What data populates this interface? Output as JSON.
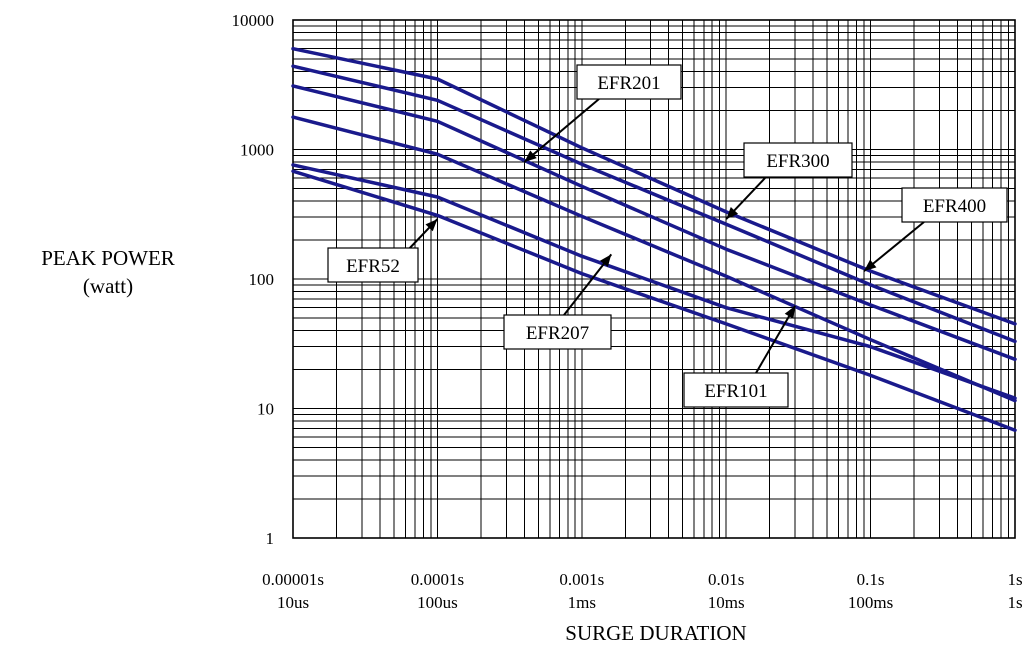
{
  "chart_data": {
    "type": "line",
    "title": "",
    "xlabel": "SURGE DURATION",
    "ylabel_line1": "PEAK POWER",
    "ylabel_line2": "(watt)",
    "x_scale": "log",
    "y_scale": "log",
    "xlim": [
      1e-05,
      1
    ],
    "ylim": [
      1,
      10000
    ],
    "grid": true,
    "x_ticks": [
      {
        "value": 1e-05,
        "label1": "0.00001s",
        "label2": "10us"
      },
      {
        "value": 0.0001,
        "label1": "0.0001s",
        "label2": "100us"
      },
      {
        "value": 0.001,
        "label1": "0.001s",
        "label2": "1ms"
      },
      {
        "value": 0.01,
        "label1": "0.01s",
        "label2": "10ms"
      },
      {
        "value": 0.1,
        "label1": "0.1s",
        "label2": "100ms"
      },
      {
        "value": 1,
        "label1": "1s",
        "label2": "1s"
      }
    ],
    "y_ticks": [
      {
        "value": 1,
        "label": "1"
      },
      {
        "value": 10,
        "label": "10"
      },
      {
        "value": 100,
        "label": "100"
      },
      {
        "value": 1000,
        "label": "1000"
      },
      {
        "value": 10000,
        "label": "10000"
      }
    ],
    "series_color": "#1a1a8c",
    "series": [
      {
        "points": [
          [
            1e-05,
            6000
          ],
          [
            0.0001,
            3500
          ],
          [
            0.001,
            1030
          ],
          [
            0.01,
            330
          ],
          [
            0.1,
            115
          ],
          [
            1,
            45
          ]
        ]
      },
      {
        "points": [
          [
            1e-05,
            4400
          ],
          [
            0.0001,
            2400
          ],
          [
            0.001,
            770
          ],
          [
            0.01,
            265
          ],
          [
            0.1,
            90
          ],
          [
            1,
            33
          ]
        ]
      },
      {
        "points": [
          [
            1e-05,
            3100
          ],
          [
            0.0001,
            1650
          ],
          [
            0.001,
            520
          ],
          [
            0.01,
            170
          ],
          [
            0.1,
            63
          ],
          [
            1,
            24
          ]
        ]
      },
      {
        "points": [
          [
            1e-05,
            1780
          ],
          [
            0.0001,
            920
          ],
          [
            0.001,
            305
          ],
          [
            0.01,
            105
          ],
          [
            0.1,
            34
          ],
          [
            1,
            11.5
          ]
        ]
      },
      {
        "points": [
          [
            1e-05,
            760
          ],
          [
            0.0001,
            430
          ],
          [
            0.001,
            150
          ],
          [
            0.01,
            60
          ],
          [
            0.1,
            30
          ],
          [
            1,
            12
          ]
        ]
      },
      {
        "points": [
          [
            1e-05,
            680
          ],
          [
            0.0001,
            310
          ],
          [
            0.001,
            110
          ],
          [
            0.01,
            45
          ],
          [
            0.1,
            18
          ],
          [
            1,
            6.8
          ]
        ]
      }
    ],
    "annotations": [
      {
        "label": "EFR201",
        "target": [
          0.0004,
          800
        ]
      },
      {
        "label": "EFR300",
        "target": [
          0.01,
          290
        ]
      },
      {
        "label": "EFR400",
        "target": [
          0.09,
          115
        ]
      },
      {
        "label": "EFR52",
        "target": [
          0.0001,
          290
        ]
      },
      {
        "label": "EFR207",
        "target": [
          0.0016,
          155
        ]
      },
      {
        "label": "EFR101",
        "target": [
          0.03,
          62
        ]
      }
    ]
  }
}
